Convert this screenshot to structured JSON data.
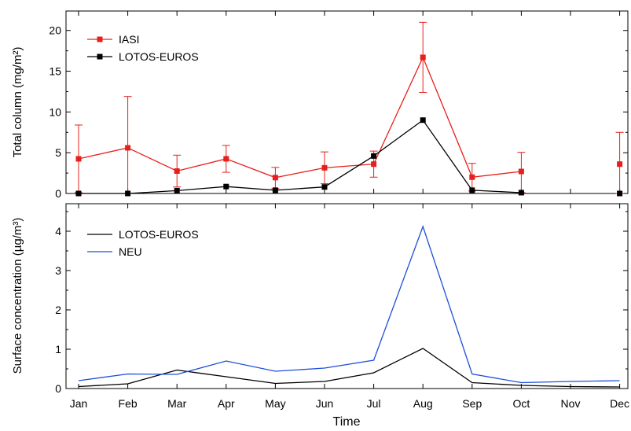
{
  "chart_data": [
    {
      "type": "line",
      "ylabel": "Total column (mg/m²)",
      "ylim": [
        0,
        22
      ],
      "yticks": [
        0,
        5,
        10,
        15,
        20
      ],
      "categories": [
        "Jan",
        "Feb",
        "Mar",
        "Apr",
        "May",
        "Jun",
        "Jul",
        "Aug",
        "Sep",
        "Oct",
        "Nov",
        "Dec"
      ],
      "legend_position": "top-left",
      "series": [
        {
          "name": "IASI",
          "color": "#e8201c",
          "marker": "square",
          "x": [
            "Jan",
            "Feb",
            "Mar",
            "Apr",
            "May",
            "Jun",
            "Jul",
            "Aug",
            "Sep",
            "Oct",
            "Dec"
          ],
          "values": [
            4.25,
            5.6,
            2.75,
            4.25,
            1.95,
            3.15,
            3.6,
            16.7,
            2.0,
            2.7,
            3.6
          ],
          "error_low": [
            0.1,
            0,
            0.8,
            2.6,
            0.6,
            1.2,
            2.0,
            12.4,
            0.3,
            0.1,
            0
          ],
          "error_high": [
            8.4,
            11.9,
            4.7,
            5.9,
            3.2,
            5.1,
            5.2,
            21.0,
            3.7,
            5.05,
            7.5
          ],
          "connect_until": "Oct"
        },
        {
          "name": "LOTOS-EUROS",
          "color": "#000000",
          "marker": "square",
          "x": [
            "Jan",
            "Feb",
            "Mar",
            "Apr",
            "May",
            "Jun",
            "Jul",
            "Aug",
            "Sep",
            "Oct",
            "Dec"
          ],
          "values": [
            0.0,
            0.0,
            0.35,
            0.85,
            0.4,
            0.8,
            4.6,
            9.0,
            0.4,
            0.1,
            0.0
          ],
          "connect_until": "Oct"
        }
      ]
    },
    {
      "type": "line",
      "xlabel": "Time",
      "ylabel": "Surface concentration (µg/m³)",
      "ylim": [
        0,
        4.6
      ],
      "yticks": [
        0,
        1,
        2,
        3,
        4
      ],
      "categories": [
        "Jan",
        "Feb",
        "Mar",
        "Apr",
        "May",
        "Jun",
        "Jul",
        "Aug",
        "Sep",
        "Oct",
        "Nov",
        "Dec"
      ],
      "legend_position": "top-left",
      "series": [
        {
          "name": "LOTOS-EUROS",
          "color": "#000000",
          "values": [
            0.05,
            0.12,
            0.47,
            0.3,
            0.13,
            0.18,
            0.4,
            1.02,
            0.15,
            0.08,
            0.05,
            0.04
          ]
        },
        {
          "name": "NEU",
          "color": "#1f4fd8",
          "values": [
            0.2,
            0.37,
            0.36,
            0.7,
            0.44,
            0.52,
            0.72,
            4.12,
            0.37,
            0.15,
            0.18,
            0.2
          ]
        }
      ]
    }
  ]
}
